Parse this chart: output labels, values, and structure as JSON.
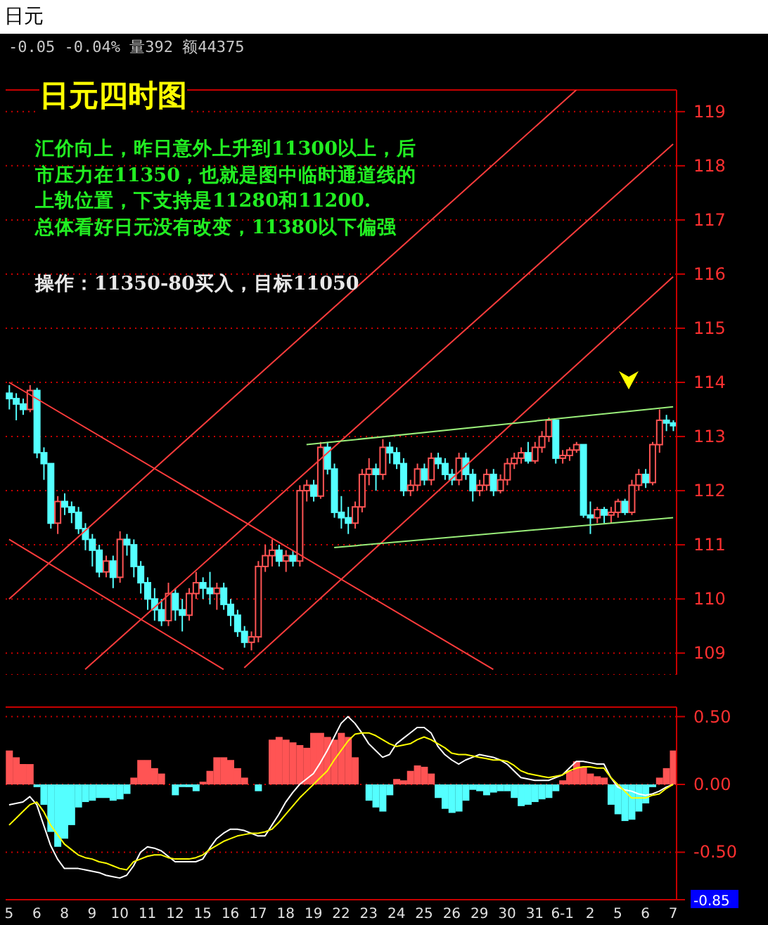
{
  "chart_data": [
    {
      "type": "candlestick",
      "title": "日元四时图",
      "subtitle": "日元",
      "annotations": [
        "-0.05 -0.04% 量392 额44375",
        "汇价向上，昨日意外上升到11300以上，后",
        "市压力在11350，也就是图中临时通道线的",
        "上轨位置，下支持是11280和11200.",
        "总体看好日元没有改变，11380以下偏强",
        "操作：11350-80买入，目标11050"
      ],
      "categories": [
        null,
        null,
        null,
        null,
        null,
        null,
        null,
        null,
        null,
        null,
        null,
        null,
        null,
        null,
        null,
        null,
        null,
        null,
        null,
        null,
        null,
        null,
        null,
        null,
        null,
        null,
        null,
        null,
        null,
        null,
        null,
        null,
        null,
        null,
        null,
        null,
        null,
        null,
        null,
        null,
        null,
        null,
        null,
        null,
        null,
        null,
        null,
        null,
        null,
        null,
        null,
        null,
        null,
        null,
        null,
        null,
        null,
        null,
        null,
        null,
        null,
        null,
        null,
        null,
        null,
        null,
        null,
        null,
        null,
        null,
        null,
        null,
        null,
        null,
        null,
        null,
        null,
        null,
        null,
        null,
        null,
        null,
        null,
        null,
        null,
        null,
        null,
        null,
        null,
        null,
        null,
        null,
        null,
        null,
        null,
        null,
        null
      ],
      "ohlc": [
        [
          113.8,
          113.95,
          113.5,
          113.7
        ],
        [
          113.7,
          113.8,
          113.3,
          113.6
        ],
        [
          113.6,
          113.7,
          113.4,
          113.5
        ],
        [
          113.5,
          113.95,
          113.45,
          113.85
        ],
        [
          113.85,
          113.9,
          112.6,
          112.7
        ],
        [
          112.7,
          112.8,
          112.2,
          112.5
        ],
        [
          112.5,
          112.5,
          111.3,
          111.4
        ],
        [
          111.4,
          111.9,
          111.2,
          111.8
        ],
        [
          111.8,
          111.95,
          111.55,
          111.7
        ],
        [
          111.7,
          111.8,
          111.4,
          111.6
        ],
        [
          111.6,
          111.7,
          111.2,
          111.3
        ],
        [
          111.3,
          111.4,
          110.9,
          111.1
        ],
        [
          111.1,
          111.2,
          110.6,
          110.9
        ],
        [
          110.9,
          111.0,
          110.4,
          110.5
        ],
        [
          110.5,
          110.8,
          110.4,
          110.7
        ],
        [
          110.7,
          110.8,
          110.2,
          110.4
        ],
        [
          110.4,
          111.25,
          110.3,
          111.1
        ],
        [
          111.1,
          111.2,
          110.8,
          111.0
        ],
        [
          111.0,
          111.1,
          110.4,
          110.6
        ],
        [
          110.6,
          110.7,
          110.1,
          110.3
        ],
        [
          110.3,
          110.4,
          109.8,
          110.0
        ],
        [
          110.0,
          110.2,
          109.6,
          109.8
        ],
        [
          109.8,
          110.0,
          109.5,
          109.6
        ],
        [
          109.6,
          110.3,
          109.5,
          110.1
        ],
        [
          110.1,
          110.2,
          109.6,
          109.8
        ],
        [
          109.8,
          110.0,
          109.4,
          109.7
        ],
        [
          109.7,
          110.2,
          109.6,
          110.1
        ],
        [
          110.1,
          110.5,
          110.0,
          110.3
        ],
        [
          110.3,
          110.4,
          110.0,
          110.2
        ],
        [
          110.2,
          110.5,
          109.9,
          110.1
        ],
        [
          110.1,
          110.3,
          109.8,
          110.2
        ],
        [
          110.2,
          110.3,
          109.8,
          109.9
        ],
        [
          109.9,
          110.0,
          109.5,
          109.7
        ],
        [
          109.7,
          109.8,
          109.3,
          109.4
        ],
        [
          109.4,
          109.5,
          109.1,
          109.2
        ],
        [
          109.2,
          109.4,
          109.05,
          109.3
        ],
        [
          109.3,
          110.7,
          109.2,
          110.6
        ],
        [
          110.6,
          111.0,
          110.5,
          110.8
        ],
        [
          110.8,
          111.1,
          110.6,
          110.9
        ],
        [
          110.9,
          111.0,
          110.6,
          110.7
        ],
        [
          110.7,
          110.9,
          110.5,
          110.8
        ],
        [
          110.8,
          110.9,
          110.6,
          110.7
        ],
        [
          110.7,
          112.1,
          110.6,
          112.0
        ],
        [
          112.0,
          112.2,
          111.8,
          112.1
        ],
        [
          112.1,
          112.2,
          111.8,
          111.9
        ],
        [
          111.9,
          112.9,
          111.85,
          112.8
        ],
        [
          112.8,
          112.9,
          112.3,
          112.4
        ],
        [
          112.4,
          112.5,
          111.5,
          111.6
        ],
        [
          111.6,
          111.9,
          111.3,
          111.5
        ],
        [
          111.5,
          111.7,
          111.2,
          111.4
        ],
        [
          111.4,
          111.8,
          111.3,
          111.7
        ],
        [
          111.7,
          112.4,
          111.6,
          112.3
        ],
        [
          112.3,
          112.6,
          112.1,
          112.4
        ],
        [
          112.4,
          112.5,
          112.0,
          112.3
        ],
        [
          112.3,
          112.95,
          112.2,
          112.8
        ],
        [
          112.8,
          112.9,
          112.5,
          112.7
        ],
        [
          112.7,
          112.8,
          112.4,
          112.5
        ],
        [
          112.5,
          112.6,
          111.9,
          112.0
        ],
        [
          112.0,
          112.2,
          111.9,
          112.1
        ],
        [
          112.1,
          112.5,
          112.0,
          112.4
        ],
        [
          112.4,
          112.5,
          112.1,
          112.2
        ],
        [
          112.2,
          112.7,
          112.1,
          112.6
        ],
        [
          112.6,
          112.7,
          112.4,
          112.5
        ],
        [
          112.5,
          112.6,
          112.2,
          112.3
        ],
        [
          112.3,
          112.4,
          112.1,
          112.2
        ],
        [
          112.2,
          112.7,
          112.1,
          112.6
        ],
        [
          112.6,
          112.7,
          112.2,
          112.3
        ],
        [
          112.3,
          112.4,
          111.8,
          112.0
        ],
        [
          112.0,
          112.2,
          111.9,
          112.1
        ],
        [
          112.1,
          112.4,
          112.0,
          112.3
        ],
        [
          112.3,
          112.4,
          111.9,
          112.0
        ],
        [
          112.0,
          112.3,
          111.95,
          112.2
        ],
        [
          112.2,
          112.6,
          112.1,
          112.5
        ],
        [
          112.5,
          112.7,
          112.4,
          112.6
        ],
        [
          112.6,
          112.8,
          112.5,
          112.7
        ],
        [
          112.7,
          112.9,
          112.5,
          112.55
        ],
        [
          112.55,
          112.9,
          112.5,
          112.8
        ],
        [
          112.8,
          113.1,
          112.7,
          113.0
        ],
        [
          113.0,
          113.35,
          112.9,
          113.3
        ],
        [
          113.3,
          113.3,
          112.5,
          112.6
        ],
        [
          112.6,
          112.75,
          112.5,
          112.65
        ],
        [
          112.65,
          112.8,
          112.55,
          112.75
        ],
        [
          112.75,
          112.9,
          112.7,
          112.85
        ],
        [
          112.85,
          112.85,
          111.5,
          111.55
        ],
        [
          111.55,
          111.8,
          111.2,
          111.5
        ],
        [
          111.5,
          111.7,
          111.4,
          111.65
        ],
        [
          111.65,
          111.7,
          111.4,
          111.55
        ],
        [
          111.55,
          111.7,
          111.4,
          111.6
        ],
        [
          111.6,
          111.85,
          111.5,
          111.8
        ],
        [
          111.8,
          111.85,
          111.55,
          111.6
        ],
        [
          111.6,
          112.2,
          111.55,
          112.1
        ],
        [
          112.1,
          112.4,
          112.0,
          112.3
        ],
        [
          112.3,
          112.4,
          112.05,
          112.15
        ],
        [
          112.15,
          112.9,
          112.1,
          112.85
        ],
        [
          112.85,
          113.5,
          112.7,
          113.3
        ],
        [
          113.3,
          113.4,
          113.1,
          113.25
        ],
        [
          113.25,
          113.3,
          113.1,
          113.2
        ]
      ],
      "colors": [
        "#54ffff",
        "#54ffff",
        "#54ffff",
        "#ff5454",
        "#54ffff",
        "#54ffff",
        "#54ffff",
        "#ff5454",
        "#54ffff",
        "#54ffff",
        "#54ffff",
        "#54ffff",
        "#54ffff",
        "#54ffff",
        "#ff5454",
        "#54ffff",
        "#ff5454",
        "#54ffff",
        "#54ffff",
        "#54ffff",
        "#54ffff",
        "#54ffff",
        "#54ffff",
        "#ff5454",
        "#54ffff",
        "#54ffff",
        "#ff5454",
        "#ff5454",
        "#54ffff",
        "#54ffff",
        "#ff5454",
        "#54ffff",
        "#54ffff",
        "#54ffff",
        "#54ffff",
        "#ff5454",
        "#ff5454",
        "#ff5454",
        "#ff5454",
        "#54ffff",
        "#ff5454",
        "#54ffff",
        "#ff5454",
        "#ff5454",
        "#54ffff",
        "#ff5454",
        "#54ffff",
        "#54ffff",
        "#54ffff",
        "#54ffff",
        "#ff5454",
        "#ff5454",
        "#ff5454",
        "#54ffff",
        "#ff5454",
        "#54ffff",
        "#54ffff",
        "#54ffff",
        "#ff5454",
        "#ff5454",
        "#54ffff",
        "#ff5454",
        "#54ffff",
        "#54ffff",
        "#54ffff",
        "#ff5454",
        "#54ffff",
        "#54ffff",
        "#ff5454",
        "#ff5454",
        "#54ffff",
        "#ff5454",
        "#ff5454",
        "#ff5454",
        "#ff5454",
        "#54ffff",
        "#ff5454",
        "#ff5454",
        "#ff5454",
        "#54ffff",
        "#ff5454",
        "#ff5454",
        "#ff5454",
        "#54ffff",
        "#54ffff",
        "#ff5454",
        "#54ffff",
        "#ff5454",
        "#ff5454",
        "#54ffff",
        "#ff5454",
        "#ff5454",
        "#54ffff",
        "#ff5454",
        "#ff5454",
        "#54ffff",
        "#54ffff"
      ],
      "series": [
        {
          "type": "line",
          "color": "#ff3c3c",
          "values": [
            110.0,
            null,
            null,
            null,
            null,
            null,
            null,
            null,
            null,
            null,
            null,
            null,
            null,
            null,
            null,
            null,
            null,
            null,
            null,
            null,
            null,
            null,
            null,
            null,
            null,
            null,
            null,
            null,
            null,
            null,
            null,
            null,
            null,
            null,
            null,
            null,
            null,
            null,
            null,
            null,
            null,
            null,
            null,
            null,
            null,
            null,
            null,
            null,
            null,
            null,
            null,
            null,
            null,
            null,
            null,
            null,
            null,
            null,
            null,
            null,
            null,
            null,
            null,
            null,
            null,
            null,
            null,
            null,
            null,
            null,
            null,
            null,
            null,
            null,
            null,
            null,
            null,
            null,
            null,
            null,
            null,
            null,
            119.4,
            null,
            null,
            null,
            null,
            null,
            null,
            null,
            null,
            null,
            null,
            null,
            null,
            null,
            null
          ]
        },
        {
          "type": "line",
          "color": "#ff3c3c",
          "values": [
            null,
            null,
            null,
            null,
            null,
            null,
            null,
            null,
            null,
            null,
            null,
            108.7,
            null,
            null,
            null,
            null,
            null,
            null,
            null,
            null,
            null,
            null,
            null,
            null,
            null,
            null,
            null,
            null,
            null,
            null,
            null,
            null,
            null,
            null,
            null,
            null,
            null,
            null,
            null,
            null,
            null,
            null,
            null,
            null,
            null,
            null,
            null,
            null,
            null,
            null,
            null,
            null,
            null,
            null,
            null,
            null,
            null,
            null,
            null,
            null,
            null,
            null,
            null,
            null,
            null,
            null,
            null,
            null,
            null,
            null,
            null,
            null,
            null,
            null,
            null,
            null,
            null,
            null,
            null,
            null,
            null,
            null,
            null,
            null,
            null,
            null,
            null,
            null,
            null,
            null,
            null,
            null,
            null,
            null,
            null,
            null,
            118.4
          ]
        },
        {
          "type": "line",
          "color": "#ff3c3c",
          "values": [
            null,
            null,
            null,
            null,
            null,
            null,
            null,
            null,
            null,
            null,
            null,
            null,
            null,
            null,
            null,
            null,
            null,
            null,
            null,
            null,
            null,
            null,
            null,
            null,
            null,
            null,
            null,
            null,
            null,
            null,
            null,
            null,
            null,
            null,
            108.73,
            null,
            null,
            null,
            null,
            null,
            null,
            null,
            null,
            null,
            null,
            null,
            null,
            null,
            null,
            null,
            null,
            null,
            null,
            null,
            null,
            null,
            null,
            null,
            null,
            null,
            null,
            null,
            null,
            null,
            null,
            null,
            null,
            null,
            null,
            null,
            null,
            null,
            null,
            null,
            null,
            null,
            null,
            null,
            null,
            null,
            null,
            null,
            null,
            null,
            null,
            null,
            null,
            null,
            null,
            null,
            null,
            null,
            null,
            null,
            null,
            null,
            115.95
          ]
        },
        {
          "type": "line",
          "color": "#ff3c3c",
          "values": [
            114.0,
            null,
            null,
            null,
            null,
            null,
            null,
            null,
            null,
            null,
            null,
            null,
            null,
            null,
            null,
            null,
            null,
            null,
            null,
            null,
            null,
            null,
            null,
            null,
            null,
            null,
            null,
            null,
            null,
            null,
            null,
            null,
            null,
            null,
            null,
            null,
            null,
            null,
            null,
            null,
            null,
            null,
            null,
            null,
            null,
            null,
            null,
            null,
            null,
            null,
            null,
            null,
            null,
            null,
            null,
            null,
            null,
            null,
            null,
            null,
            null,
            null,
            null,
            null,
            null,
            null,
            null,
            null,
            null,
            null,
            108.7,
            null,
            null,
            null,
            null,
            null,
            null,
            null,
            null,
            null,
            null,
            null,
            null,
            null,
            null,
            null,
            null,
            null,
            null,
            null,
            null,
            null,
            null,
            null,
            null,
            null,
            null
          ]
        },
        {
          "type": "line",
          "color": "#ff3c3c",
          "values": [
            111.1,
            null,
            null,
            null,
            null,
            null,
            null,
            null,
            null,
            null,
            null,
            null,
            null,
            null,
            null,
            null,
            null,
            null,
            null,
            null,
            null,
            null,
            null,
            null,
            null,
            null,
            null,
            null,
            null,
            null,
            null,
            108.7,
            null,
            null,
            null,
            null,
            null,
            null,
            null,
            null,
            null,
            null,
            null,
            null,
            null,
            null,
            null,
            null,
            null,
            null,
            null,
            null,
            null,
            null,
            null,
            null,
            null,
            null,
            null,
            null,
            null,
            null,
            null,
            null,
            null,
            null,
            null,
            null,
            null,
            null,
            null,
            null,
            null,
            null,
            null,
            null,
            null,
            null,
            null,
            null,
            null,
            null,
            null,
            null,
            null,
            null,
            null,
            null,
            null,
            null,
            null,
            null,
            null,
            null,
            null,
            null,
            null
          ]
        },
        {
          "type": "line",
          "color": "#9aee7a",
          "values": [
            null,
            null,
            null,
            null,
            null,
            null,
            null,
            null,
            null,
            null,
            null,
            null,
            null,
            null,
            null,
            null,
            null,
            null,
            null,
            null,
            null,
            null,
            null,
            null,
            null,
            null,
            null,
            null,
            null,
            null,
            null,
            null,
            null,
            null,
            null,
            null,
            null,
            null,
            null,
            null,
            null,
            null,
            null,
            112.85,
            null,
            null,
            null,
            null,
            null,
            null,
            null,
            null,
            null,
            null,
            null,
            null,
            null,
            null,
            null,
            null,
            null,
            null,
            null,
            null,
            null,
            null,
            null,
            null,
            null,
            null,
            null,
            null,
            null,
            null,
            null,
            null,
            null,
            null,
            null,
            null,
            null,
            null,
            null,
            null,
            null,
            null,
            null,
            null,
            null,
            null,
            null,
            null,
            null,
            null,
            null,
            null,
            113.55
          ]
        },
        {
          "type": "line",
          "color": "#9aee7a",
          "values": [
            null,
            null,
            null,
            null,
            null,
            null,
            null,
            null,
            null,
            null,
            null,
            null,
            null,
            null,
            null,
            null,
            null,
            null,
            null,
            null,
            null,
            null,
            null,
            null,
            null,
            null,
            null,
            null,
            null,
            null,
            null,
            null,
            null,
            null,
            null,
            null,
            null,
            null,
            null,
            null,
            null,
            null,
            null,
            null,
            null,
            null,
            null,
            110.95,
            null,
            null,
            null,
            null,
            null,
            null,
            null,
            null,
            null,
            null,
            null,
            null,
            null,
            null,
            null,
            null,
            null,
            null,
            null,
            null,
            null,
            null,
            null,
            null,
            null,
            null,
            null,
            null,
            null,
            null,
            null,
            null,
            null,
            null,
            null,
            null,
            null,
            null,
            null,
            null,
            null,
            null,
            null,
            null,
            null,
            null,
            null,
            null,
            111.5
          ]
        }
      ],
      "ylim": [
        108.6,
        119.4
      ],
      "yticks": [
        109,
        110,
        111,
        112,
        113,
        114,
        115,
        116,
        117,
        118,
        119
      ],
      "grid": "y",
      "tick_labels": "y"
    },
    {
      "type": "bar",
      "categories": [
        "5",
        null,
        null,
        null,
        "6",
        null,
        null,
        null,
        "8",
        null,
        null,
        null,
        "9",
        null,
        null,
        null,
        "10",
        null,
        null,
        null,
        "11",
        null,
        null,
        null,
        "12",
        null,
        null,
        null,
        "15",
        null,
        null,
        null,
        "16",
        null,
        null,
        null,
        "17",
        null,
        null,
        null,
        "18",
        null,
        null,
        null,
        "19",
        null,
        null,
        null,
        "22",
        null,
        null,
        null,
        "23",
        null,
        null,
        null,
        "24",
        null,
        null,
        null,
        "25",
        null,
        null,
        null,
        "26",
        null,
        null,
        null,
        "29",
        null,
        null,
        null,
        "30",
        null,
        null,
        null,
        "31",
        null,
        null,
        null,
        "6-1",
        null,
        null,
        null,
        "2",
        null,
        null,
        null,
        "5",
        null,
        null,
        null,
        "6",
        null,
        null,
        null,
        "7"
      ],
      "series": [
        {
          "type": "bar",
          "values": [
            0.25,
            0.2,
            0.15,
            0.15,
            -0.02,
            -0.15,
            -0.35,
            -0.46,
            -0.4,
            -0.3,
            -0.17,
            -0.13,
            -0.12,
            -0.1,
            -0.1,
            -0.12,
            -0.11,
            -0.07,
            0.05,
            0.18,
            0.18,
            0.12,
            0.08,
            0.0,
            -0.08,
            -0.02,
            -0.02,
            -0.05,
            0.02,
            0.1,
            0.2,
            0.2,
            0.18,
            0.12,
            0.05,
            0.0,
            -0.05,
            0.0,
            0.33,
            0.35,
            0.33,
            0.31,
            0.29,
            0.27,
            0.38,
            0.38,
            0.35,
            0.33,
            0.38,
            0.35,
            0.2,
            0.0,
            -0.12,
            -0.17,
            -0.2,
            -0.08,
            0.04,
            0.03,
            0.1,
            0.14,
            0.13,
            0.08,
            -0.1,
            -0.18,
            -0.21,
            -0.2,
            -0.12,
            -0.04,
            -0.05,
            -0.08,
            -0.06,
            -0.05,
            -0.05,
            -0.1,
            -0.16,
            -0.15,
            -0.13,
            -0.11,
            -0.1,
            -0.05,
            0.03,
            0.1,
            0.17,
            0.13,
            0.08,
            0.06,
            0.05,
            -0.15,
            -0.22,
            -0.27,
            -0.26,
            -0.2,
            -0.14,
            -0.02,
            0.05,
            0.12,
            0.25
          ],
          "colors": [
            "#ff5454",
            "#ff5454",
            "#ff5454",
            "#ff5454",
            "#54ffff",
            "#54ffff",
            "#54ffff",
            "#54ffff",
            "#54ffff",
            "#54ffff",
            "#54ffff",
            "#54ffff",
            "#54ffff",
            "#54ffff",
            "#54ffff",
            "#54ffff",
            "#54ffff",
            "#54ffff",
            "#ff5454",
            "#ff5454",
            "#ff5454",
            "#ff5454",
            "#ff5454",
            "#ff5454",
            "#54ffff",
            "#54ffff",
            "#54ffff",
            "#54ffff",
            "#ff5454",
            "#ff5454",
            "#ff5454",
            "#ff5454",
            "#ff5454",
            "#ff5454",
            "#ff5454",
            "#ff5454",
            "#54ffff",
            "#ff5454",
            "#ff5454",
            "#ff5454",
            "#ff5454",
            "#ff5454",
            "#ff5454",
            "#ff5454",
            "#ff5454",
            "#ff5454",
            "#ff5454",
            "#ff5454",
            "#ff5454",
            "#ff5454",
            "#ff5454",
            "#ff5454",
            "#54ffff",
            "#54ffff",
            "#54ffff",
            "#54ffff",
            "#ff5454",
            "#ff5454",
            "#ff5454",
            "#ff5454",
            "#ff5454",
            "#ff5454",
            "#54ffff",
            "#54ffff",
            "#54ffff",
            "#54ffff",
            "#54ffff",
            "#54ffff",
            "#54ffff",
            "#54ffff",
            "#54ffff",
            "#54ffff",
            "#54ffff",
            "#54ffff",
            "#54ffff",
            "#54ffff",
            "#54ffff",
            "#54ffff",
            "#54ffff",
            "#54ffff",
            "#ff5454",
            "#ff5454",
            "#ff5454",
            "#ff5454",
            "#ff5454",
            "#ff5454",
            "#ff5454",
            "#54ffff",
            "#54ffff",
            "#54ffff",
            "#54ffff",
            "#54ffff",
            "#54ffff",
            "#54ffff",
            "#ff5454",
            "#ff5454",
            "#ff5454"
          ]
        },
        {
          "type": "line",
          "color": "#ffffff",
          "values": [
            -0.15,
            -0.14,
            -0.13,
            -0.09,
            -0.15,
            -0.3,
            -0.45,
            -0.55,
            -0.62,
            -0.62,
            -0.62,
            -0.63,
            -0.64,
            -0.65,
            -0.67,
            -0.68,
            -0.69,
            -0.67,
            -0.6,
            -0.5,
            -0.46,
            -0.47,
            -0.49,
            -0.53,
            -0.57,
            -0.57,
            -0.57,
            -0.57,
            -0.55,
            -0.47,
            -0.4,
            -0.36,
            -0.33,
            -0.33,
            -0.34,
            -0.36,
            -0.38,
            -0.38,
            -0.3,
            -0.22,
            -0.13,
            -0.06,
            0.0,
            0.04,
            0.08,
            0.16,
            0.25,
            0.35,
            0.45,
            0.5,
            0.45,
            0.38,
            0.3,
            0.25,
            0.2,
            0.22,
            0.3,
            0.34,
            0.38,
            0.42,
            0.42,
            0.38,
            0.28,
            0.22,
            0.18,
            0.15,
            0.18,
            0.2,
            0.22,
            0.21,
            0.2,
            0.18,
            0.15,
            0.1,
            0.05,
            0.04,
            0.03,
            0.03,
            0.03,
            0.05,
            0.07,
            0.12,
            0.17,
            0.17,
            0.16,
            0.15,
            0.15,
            0.05,
            -0.02,
            -0.04,
            -0.05,
            -0.07,
            -0.08,
            -0.07,
            -0.05,
            -0.02,
            0.0
          ]
        },
        {
          "type": "line",
          "color": "#ffff00",
          "values": [
            -0.3,
            -0.25,
            -0.2,
            -0.15,
            -0.13,
            -0.2,
            -0.3,
            -0.37,
            -0.44,
            -0.48,
            -0.52,
            -0.54,
            -0.55,
            -0.57,
            -0.58,
            -0.6,
            -0.62,
            -0.63,
            -0.57,
            -0.55,
            -0.53,
            -0.52,
            -0.52,
            -0.54,
            -0.55,
            -0.55,
            -0.55,
            -0.54,
            -0.52,
            -0.48,
            -0.45,
            -0.42,
            -0.4,
            -0.38,
            -0.37,
            -0.36,
            -0.36,
            -0.35,
            -0.33,
            -0.28,
            -0.22,
            -0.16,
            -0.1,
            -0.05,
            0.0,
            0.05,
            0.1,
            0.18,
            0.25,
            0.32,
            0.37,
            0.38,
            0.38,
            0.36,
            0.33,
            0.3,
            0.28,
            0.29,
            0.3,
            0.33,
            0.35,
            0.33,
            0.3,
            0.27,
            0.23,
            0.22,
            0.22,
            0.21,
            0.2,
            0.19,
            0.18,
            0.18,
            0.17,
            0.14,
            0.1,
            0.08,
            0.07,
            0.06,
            0.05,
            0.06,
            0.07,
            0.1,
            0.12,
            0.13,
            0.13,
            0.12,
            0.12,
            0.05,
            0.0,
            -0.05,
            -0.1,
            -0.1,
            -0.1,
            -0.08,
            -0.07,
            -0.03,
            0.0
          ]
        }
      ],
      "ylim": [
        -0.85,
        0.57
      ],
      "yticks": [
        {
          "value": -0.85,
          "label": "-0.85"
        },
        {
          "value": -0.5,
          "label": "-0.50"
        },
        {
          "value": 0,
          "label": "0.00"
        },
        {
          "value": 0.5,
          "label": "0.50"
        }
      ],
      "grid": "y"
    }
  ]
}
